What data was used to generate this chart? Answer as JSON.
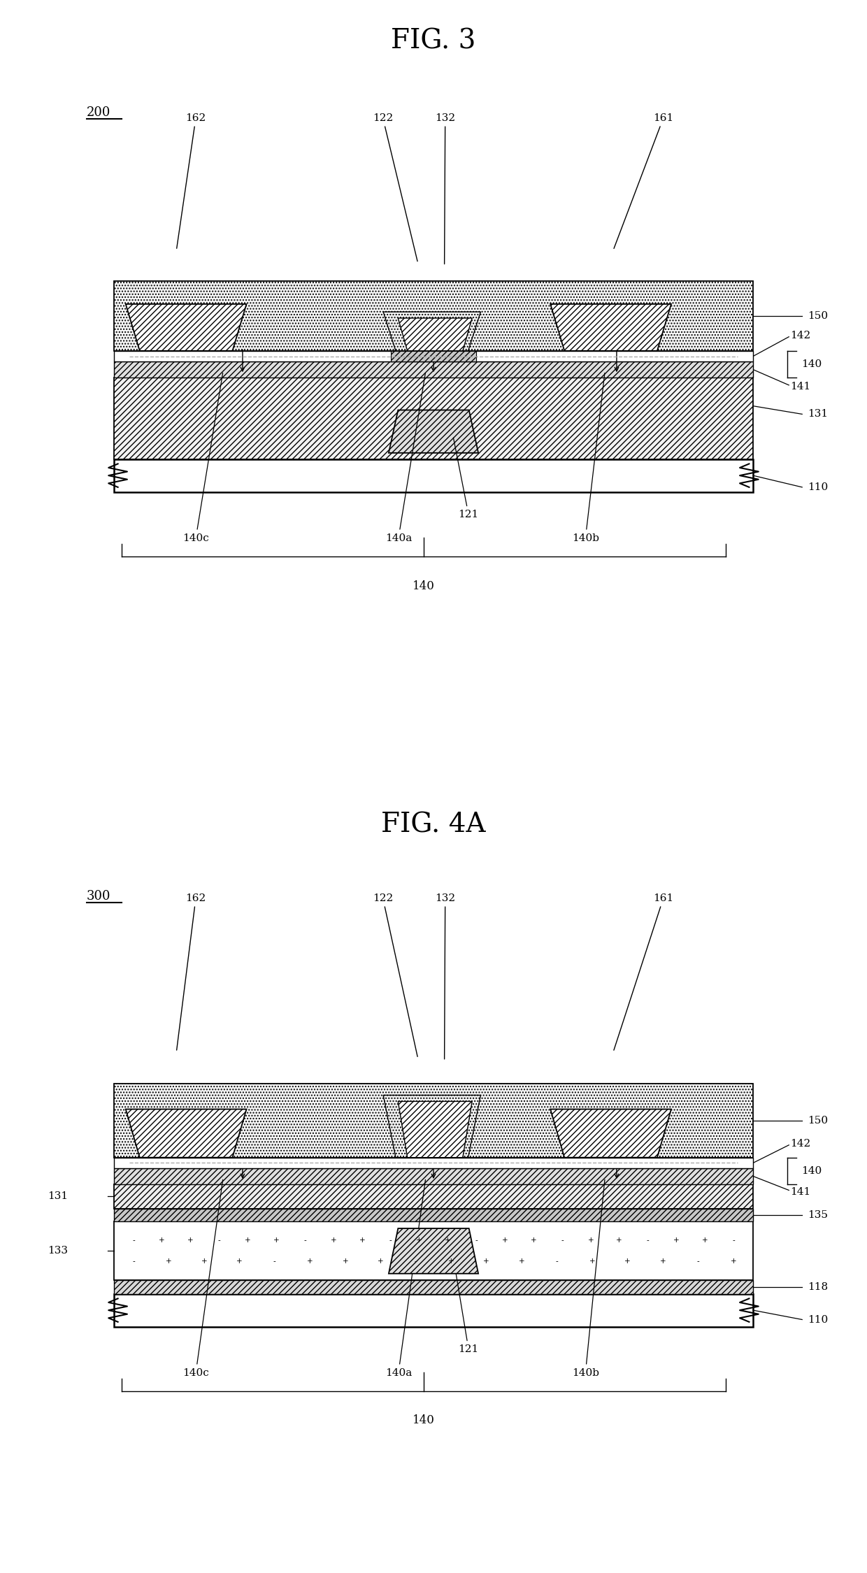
{
  "fig3_title": "FIG. 3",
  "fig4a_title": "FIG. 4A",
  "fig3_label": "200",
  "fig4a_label": "300",
  "bg_color": "#ffffff",
  "line_color": "#000000"
}
